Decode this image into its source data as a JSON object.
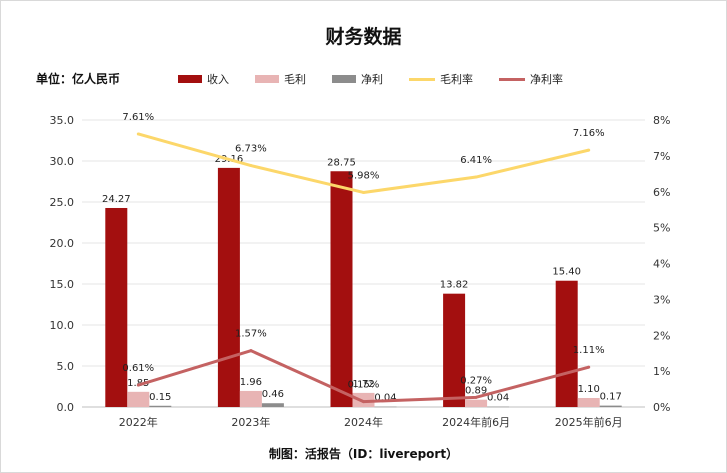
{
  "title": "财务数据",
  "unit_label": "单位：亿人民币",
  "source": "制图：活报告（ID：livereport）",
  "chart_data": {
    "type": "bar",
    "categories": [
      "2022年",
      "2023年",
      "2024年",
      "2024年前6月",
      "2025年前6月"
    ],
    "series": [
      {
        "name": "收入",
        "type": "bar",
        "axis": "left",
        "color": "#a30f0f",
        "values": [
          24.27,
          29.16,
          28.75,
          13.82,
          15.4
        ],
        "labels": [
          "24.27",
          "29.16",
          "28.75",
          "13.82",
          "15.40"
        ]
      },
      {
        "name": "毛利",
        "type": "bar",
        "axis": "left",
        "color": "#e8b4b4",
        "values": [
          1.85,
          1.96,
          1.72,
          0.89,
          1.1
        ],
        "labels": [
          "1.85",
          "1.96",
          "1.72",
          "0.89",
          "1.10"
        ]
      },
      {
        "name": "净利",
        "type": "bar",
        "axis": "left",
        "color": "#8c8c8c",
        "values": [
          0.15,
          0.46,
          0.04,
          0.04,
          0.17
        ],
        "labels": [
          "0.15",
          "0.46",
          "0.04",
          "0.04",
          "0.17"
        ]
      },
      {
        "name": "毛利率",
        "type": "line",
        "axis": "right",
        "color": "#fcd76a",
        "values": [
          7.61,
          6.73,
          5.98,
          6.41,
          7.16
        ],
        "labels": [
          "7.61%",
          "6.73%",
          "5.98%",
          "6.41%",
          "7.16%"
        ]
      },
      {
        "name": "净利率",
        "type": "line",
        "axis": "right",
        "color": "#c46262",
        "values": [
          0.61,
          1.57,
          0.15,
          0.27,
          1.11
        ],
        "labels": [
          "0.61%",
          "1.57%",
          "0.15%",
          "0.27%",
          "1.11%"
        ]
      }
    ],
    "y_left": {
      "min": 0,
      "max": 35,
      "step": 5,
      "ticks": [
        "0.0",
        "5.0",
        "10.0",
        "15.0",
        "20.0",
        "25.0",
        "30.0",
        "35.0"
      ]
    },
    "y_right": {
      "min": 0,
      "max": 8,
      "step": 1,
      "ticks": [
        "0%",
        "1%",
        "2%",
        "3%",
        "4%",
        "5%",
        "6%",
        "7%",
        "8%"
      ]
    },
    "grid": true,
    "legend_position": "top"
  }
}
